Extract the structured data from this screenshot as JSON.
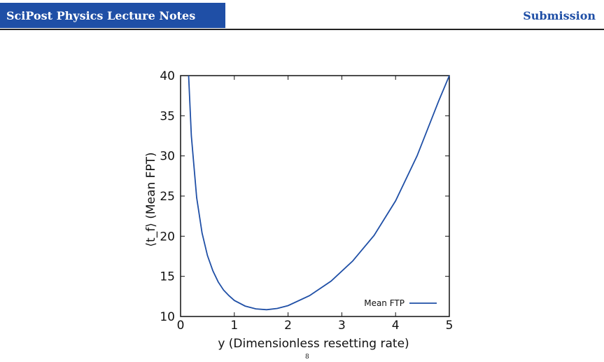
{
  "header": {
    "journal": "SciPost Physics Lecture Notes",
    "status": "Submission",
    "brand_color": "#1f4fa6"
  },
  "chart_data": {
    "type": "line",
    "title": "",
    "xlabel": "y (Dimensionless resetting rate)",
    "ylabel": "⟨t_f⟩ (Mean FPT)",
    "xlim": [
      0,
      5
    ],
    "ylim": [
      10,
      40
    ],
    "x_ticks": [
      "0",
      "1",
      "2",
      "3",
      "4",
      "5"
    ],
    "y_ticks": [
      "10",
      "15",
      "20",
      "25",
      "30",
      "35",
      "40"
    ],
    "grid": false,
    "legend_position": "bottom-right",
    "series": [
      {
        "name": "Mean FTP",
        "color": "#1f4fa6",
        "x": [
          0.15,
          0.2,
          0.3,
          0.4,
          0.5,
          0.6,
          0.7,
          0.8,
          0.9,
          1.0,
          1.2,
          1.4,
          1.6,
          1.8,
          2.0,
          2.4,
          2.8,
          3.2,
          3.6,
          4.0,
          4.4,
          4.8,
          5.0
        ],
        "y": [
          40.0,
          32.5,
          24.8,
          20.4,
          17.6,
          15.7,
          14.3,
          13.3,
          12.6,
          12.0,
          11.3,
          10.95,
          10.85,
          11.0,
          11.35,
          12.6,
          14.4,
          16.9,
          20.1,
          24.4,
          30.0,
          36.8,
          40.0
        ]
      }
    ]
  },
  "footer": {
    "page_mark": "8"
  }
}
